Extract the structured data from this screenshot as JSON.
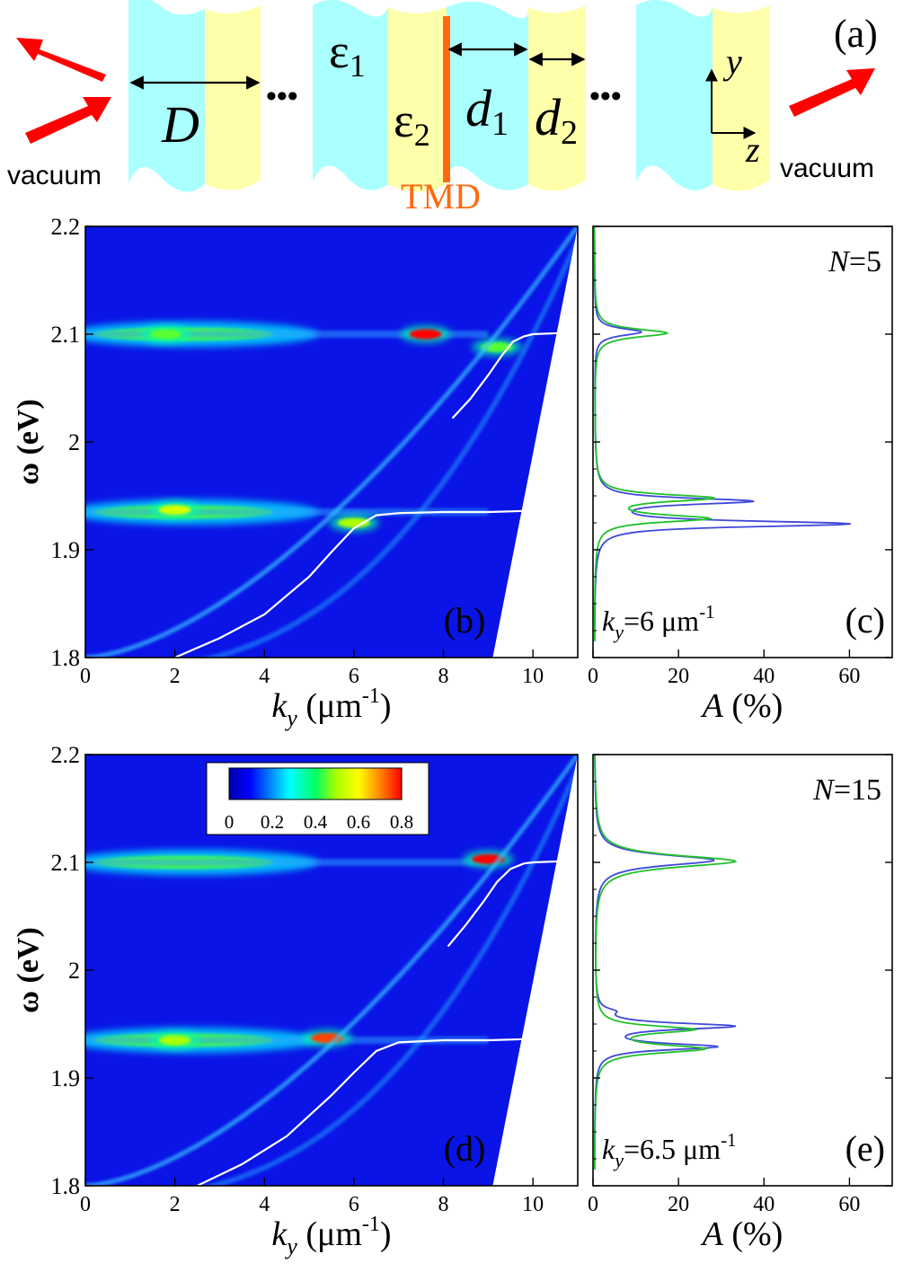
{
  "schematic": {
    "panel_label": "(a)",
    "left_medium": "vacuum",
    "right_medium": "vacuum",
    "period_symbol": "D",
    "eps1_symbol": "ε",
    "eps1_sub": "1",
    "eps2_symbol": "ε",
    "eps2_sub": "2",
    "d1_symbol": "d",
    "d1_sub": "1",
    "d2_symbol": "d",
    "d2_sub": "2",
    "tmd_label": "TMD",
    "ellipsis": "•••",
    "axis_y": "y",
    "axis_z": "z",
    "colors": {
      "layer1": "#aaffff",
      "layer2": "#ffffaa",
      "tmd": "#ff6a10",
      "arrow": "#ff0000"
    }
  },
  "chart_data": [
    {
      "id": "b",
      "type": "heatmap",
      "panel_label": "(b)",
      "xlabel_symbol": "k",
      "xlabel_sub": "y",
      "xlabel_unit_open": "(μm",
      "xlabel_unit_sup": "-1",
      "xlabel_unit_close": ")",
      "ylabel": "ω (eV)",
      "xlim": [
        0,
        11
      ],
      "ylim": [
        1.8,
        2.2
      ],
      "xticks": [
        "0",
        "2",
        "4",
        "6",
        "8",
        "10"
      ],
      "yticks": [
        "1.8",
        "1.9",
        "2",
        "2.1",
        "2.2"
      ],
      "light_line_top_ky": 11.0,
      "light_line_bottom_ky": 9.1,
      "exciton_energies": [
        1.935,
        2.1
      ],
      "polariton_branches": [
        {
          "name": "lower",
          "ky": [
            2.0,
            3.0,
            4.0,
            5.0,
            5.5,
            6.0,
            6.5,
            7.0,
            8.0,
            9.0,
            9.8
          ],
          "omega": [
            1.8,
            1.818,
            1.84,
            1.875,
            1.898,
            1.92,
            1.932,
            1.934,
            1.935,
            1.935,
            1.936
          ]
        },
        {
          "name": "upper",
          "ky": [
            8.2,
            8.6,
            9.0,
            9.3,
            9.55,
            9.8,
            10.0,
            10.6
          ],
          "omega": [
            2.022,
            2.04,
            2.062,
            2.08,
            2.093,
            2.098,
            2.1,
            2.101
          ]
        }
      ],
      "hot_spots": [
        {
          "ky": 1.8,
          "omega": 2.1,
          "value": 0.45
        },
        {
          "ky": 7.6,
          "omega": 2.1,
          "value": 0.8
        },
        {
          "ky": 9.2,
          "omega": 2.088,
          "value": 0.45
        },
        {
          "ky": 2.0,
          "omega": 1.937,
          "value": 0.55
        },
        {
          "ky": 6.0,
          "omega": 1.925,
          "value": 0.5
        }
      ]
    },
    {
      "id": "c",
      "type": "line",
      "panel_label": "(c)",
      "annotation": "N=5",
      "annotation_symbol": "N",
      "annotation_value": "=5",
      "ky_symbol": "k",
      "ky_sub": "y",
      "ky_value": "=6 μm",
      "ky_sup": "-1",
      "xlabel_symbol": "A",
      "xlabel_unit": "(%)",
      "xlim": [
        0,
        70
      ],
      "ylim": [
        1.8,
        2.2
      ],
      "xticks": [
        "0",
        "20",
        "40",
        "60"
      ],
      "series": [
        {
          "name": "blue",
          "color": "#3f48d8",
          "peaks": [
            {
              "omega": 2.102,
              "height": 11,
              "width": 0.004
            },
            {
              "omega": 1.945,
              "height": 36,
              "width": 0.0035
            },
            {
              "omega": 1.924,
              "height": 59,
              "width": 0.0033
            }
          ]
        },
        {
          "name": "green",
          "color": "#21c02b",
          "peaks": [
            {
              "omega": 2.101,
              "height": 17,
              "width": 0.0045
            },
            {
              "omega": 1.948,
              "height": 27,
              "width": 0.004
            },
            {
              "omega": 1.929,
              "height": 26,
              "width": 0.004
            }
          ]
        }
      ]
    },
    {
      "id": "d",
      "type": "heatmap",
      "panel_label": "(d)",
      "xlabel_symbol": "k",
      "xlabel_sub": "y",
      "xlabel_unit_open": "(μm",
      "xlabel_unit_sup": "-1",
      "xlabel_unit_close": ")",
      "ylabel": "ω (eV)",
      "xlim": [
        0,
        11
      ],
      "ylim": [
        1.8,
        2.2
      ],
      "xticks": [
        "0",
        "2",
        "4",
        "6",
        "8",
        "10"
      ],
      "yticks": [
        "1.8",
        "1.9",
        "2",
        "2.1",
        "2.2"
      ],
      "light_line_top_ky": 11.0,
      "light_line_bottom_ky": 9.1,
      "exciton_energies": [
        1.935,
        2.1
      ],
      "polariton_branches": [
        {
          "name": "lower",
          "ky": [
            2.5,
            3.5,
            4.5,
            5.5,
            6.0,
            6.5,
            7.0,
            8.0,
            9.0,
            9.8
          ],
          "omega": [
            1.8,
            1.82,
            1.846,
            1.884,
            1.905,
            1.925,
            1.933,
            1.935,
            1.935,
            1.936
          ]
        },
        {
          "name": "upper",
          "ky": [
            8.1,
            8.5,
            8.9,
            9.2,
            9.5,
            9.8,
            10.0,
            10.6
          ],
          "omega": [
            2.022,
            2.042,
            2.064,
            2.082,
            2.094,
            2.099,
            2.1,
            2.101
          ]
        }
      ],
      "hot_spots": [
        {
          "ky": 9.0,
          "omega": 2.103,
          "value": 0.8
        },
        {
          "ky": 5.4,
          "omega": 1.937,
          "value": 0.75
        },
        {
          "ky": 2.0,
          "omega": 1.935,
          "value": 0.5
        }
      ],
      "colorbar": {
        "ticks": [
          "0",
          "0.2",
          "0.4",
          "0.6",
          "0.8"
        ],
        "range": [
          0,
          0.8
        ]
      }
    },
    {
      "id": "e",
      "type": "line",
      "panel_label": "(e)",
      "annotation": "N=15",
      "annotation_symbol": "N",
      "annotation_value": "=15",
      "ky_symbol": "k",
      "ky_sub": "y",
      "ky_value": "=6.5 μm",
      "ky_sup": "-1",
      "xlabel_symbol": "A",
      "xlabel_unit": "(%)",
      "xlim": [
        0,
        70
      ],
      "ylim": [
        1.8,
        2.2
      ],
      "xticks": [
        "0",
        "20",
        "40",
        "60"
      ],
      "series": [
        {
          "name": "blue",
          "color": "#3f48d8",
          "peaks": [
            {
              "omega": 2.102,
              "height": 28,
              "width": 0.006
            },
            {
              "omega": 1.962,
              "height": 3,
              "width": 0.003
            },
            {
              "omega": 1.948,
              "height": 32,
              "width": 0.0035
            },
            {
              "omega": 1.929,
              "height": 28,
              "width": 0.0035
            }
          ]
        },
        {
          "name": "green",
          "color": "#21c02b",
          "peaks": [
            {
              "omega": 2.101,
              "height": 33,
              "width": 0.0065
            },
            {
              "omega": 1.945,
              "height": 22,
              "width": 0.004
            },
            {
              "omega": 1.927,
              "height": 25,
              "width": 0.0045
            }
          ]
        }
      ]
    }
  ]
}
